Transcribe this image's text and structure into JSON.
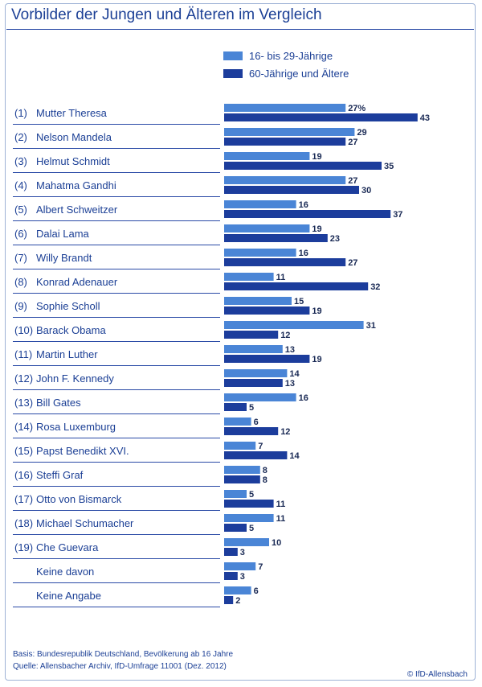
{
  "title": "Vorbilder der Jungen und Älteren im Vergleich",
  "chart_data": {
    "type": "bar",
    "orientation": "horizontal",
    "title": "Vorbilder der Jungen und Älteren im Vergleich",
    "value_unit": "%",
    "first_value_suffix": "%",
    "legend_position": "top-right",
    "categories": [
      "(1) Mutter Theresa",
      "(2) Nelson Mandela",
      "(3) Helmut Schmidt",
      "(4) Mahatma Gandhi",
      "(5) Albert Schweitzer",
      "(6) Dalai Lama",
      "(7) Willy Brandt",
      "(8) Konrad Adenauer",
      "(9) Sophie Scholl",
      "(10) Barack Obama",
      "(11) Martin Luther",
      "(12) John F. Kennedy",
      "(13) Bill Gates",
      "(14) Rosa Luxemburg",
      "(15) Papst Benedikt XVI.",
      "(16) Steffi Graf",
      "(17) Otto von Bismarck",
      "(18) Michael Schumacher",
      "(19) Che Guevara",
      "Keine davon",
      "Keine Angabe"
    ],
    "series": [
      {
        "name": "16- bis 29-Jährige",
        "color": "#4a85d6",
        "values": [
          27,
          29,
          19,
          27,
          16,
          19,
          16,
          11,
          15,
          31,
          13,
          14,
          16,
          6,
          7,
          8,
          5,
          11,
          10,
          7,
          6
        ]
      },
      {
        "name": "60-Jährige und Ältere",
        "color": "#1c3d9c",
        "values": [
          43,
          27,
          35,
          30,
          37,
          23,
          27,
          32,
          19,
          12,
          19,
          13,
          5,
          12,
          14,
          8,
          11,
          5,
          3,
          3,
          2
        ]
      }
    ]
  },
  "footer": {
    "basis": "Basis: Bundesrepublik Deutschland, Bevölkerung ab 16 Jahre",
    "quelle": "Quelle: Allensbacher Archiv, IfD-Umfrage 11001 (Dez. 2012)",
    "copyright": "© IfD-Allensbach"
  }
}
